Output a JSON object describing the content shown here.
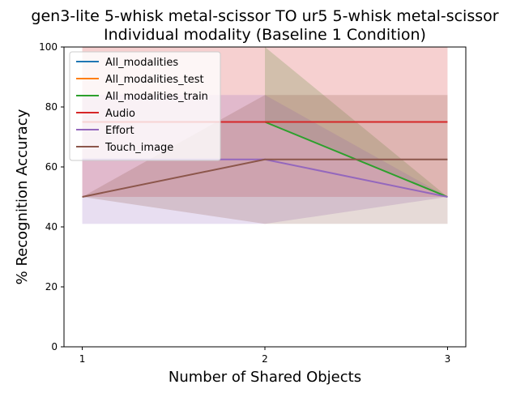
{
  "chart_data": {
    "type": "line",
    "title_lines": [
      "gen3-lite 5-whisk metal-scissor TO ur5 5-whisk metal-scissor",
      "Individual modality (Baseline 1 Condition)"
    ],
    "xlabel": "Number of Shared Objects",
    "ylabel": "% Recognition Accuracy",
    "x": [
      1,
      2,
      3
    ],
    "xlim": [
      0.9,
      3.1
    ],
    "ylim": [
      0,
      100
    ],
    "xticks": [
      "1",
      "2",
      "3"
    ],
    "yticks": [
      "0",
      "20",
      "40",
      "60",
      "80",
      "100"
    ],
    "legend_position": "upper left",
    "series": [
      {
        "name": "All_modalities",
        "color": "#1f77b4",
        "values": [
          null,
          null,
          null
        ],
        "band_low": null,
        "band_high": null
      },
      {
        "name": "All_modalities_test",
        "color": "#ff7f0e",
        "values": [
          null,
          null,
          null
        ],
        "band_low": null,
        "band_high": null
      },
      {
        "name": "All_modalities_train",
        "color": "#2ca02c",
        "values": [
          null,
          75,
          50
        ],
        "band_low": [
          null,
          75,
          50
        ],
        "band_high": [
          null,
          100,
          50
        ]
      },
      {
        "name": "Audio",
        "color": "#d62728",
        "values": [
          75,
          75,
          75
        ],
        "band_low": [
          50,
          50,
          50
        ],
        "band_high": [
          100,
          100,
          100
        ]
      },
      {
        "name": "Effort",
        "color": "#9467bd",
        "values": [
          62.5,
          62.5,
          50
        ],
        "band_low": [
          41,
          41,
          50
        ],
        "band_high": [
          84,
          84,
          50
        ]
      },
      {
        "name": "Touch_image",
        "color": "#8c564b",
        "values": [
          50,
          62.5,
          62.5
        ],
        "band_low": [
          50,
          41,
          41
        ],
        "band_high": [
          50,
          84,
          84
        ]
      }
    ]
  }
}
